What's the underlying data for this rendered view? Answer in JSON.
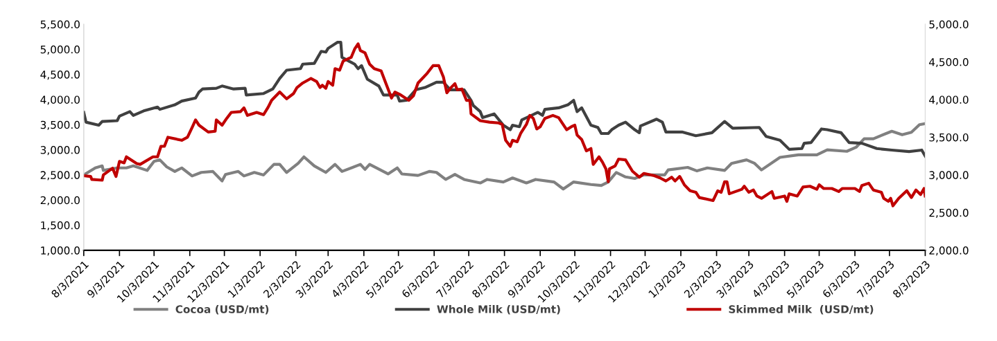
{
  "chart_data": {
    "type": "line",
    "xlim": [
      "2021-08-03",
      "2023-08-03"
    ],
    "xticks": [
      {
        "value": "2021-08-03",
        "label": "8/3/2021"
      },
      {
        "value": "2021-09-03",
        "label": "9/3/2021"
      },
      {
        "value": "2021-10-03",
        "label": "10/3/2021"
      },
      {
        "value": "2021-11-03",
        "label": "11/3/2021"
      },
      {
        "value": "2021-12-03",
        "label": "12/3/2021"
      },
      {
        "value": "2022-01-03",
        "label": "1/3/2022"
      },
      {
        "value": "2022-02-03",
        "label": "2/3/2022"
      },
      {
        "value": "2022-03-03",
        "label": "3/3/2022"
      },
      {
        "value": "2022-04-03",
        "label": "4/3/2022"
      },
      {
        "value": "2022-05-03",
        "label": "5/3/2022"
      },
      {
        "value": "2022-06-03",
        "label": "6/3/2022"
      },
      {
        "value": "2022-07-03",
        "label": "7/3/2022"
      },
      {
        "value": "2022-08-03",
        "label": "8/3/2022"
      },
      {
        "value": "2022-09-03",
        "label": "9/3/2022"
      },
      {
        "value": "2022-10-03",
        "label": "10/3/2022"
      },
      {
        "value": "2022-11-03",
        "label": "11/3/2022"
      },
      {
        "value": "2022-12-03",
        "label": "12/3/2022"
      },
      {
        "value": "2023-01-03",
        "label": "1/3/2023"
      },
      {
        "value": "2023-02-03",
        "label": "2/3/2023"
      },
      {
        "value": "2023-03-03",
        "label": "3/3/2023"
      },
      {
        "value": "2023-04-03",
        "label": "4/3/2023"
      },
      {
        "value": "2023-05-03",
        "label": "5/3/2023"
      },
      {
        "value": "2023-06-03",
        "label": "6/3/2023"
      },
      {
        "value": "2023-07-03",
        "label": "7/3/2023"
      },
      {
        "value": "2023-08-03",
        "label": "8/3/2023"
      }
    ],
    "ylim": [
      1000,
      5500
    ],
    "yticks": [
      {
        "value": 1000,
        "label": "1,000.0"
      },
      {
        "value": 1500,
        "label": "1,500.0"
      },
      {
        "value": 2000,
        "label": "2,000.0"
      },
      {
        "value": 2500,
        "label": "2,500.0"
      },
      {
        "value": 3000,
        "label": "3,000.0"
      },
      {
        "value": 3500,
        "label": "3,500.0"
      },
      {
        "value": 4000,
        "label": "4,000.0"
      },
      {
        "value": 4500,
        "label": "4,500.0"
      },
      {
        "value": 5000,
        "label": "5,000.0"
      },
      {
        "value": 5500,
        "label": "5,500.0"
      }
    ],
    "y2lim": [
      2000,
      5000
    ],
    "y2ticks": [
      {
        "value": 2000,
        "label": "2,000.0"
      },
      {
        "value": 2500,
        "label": "2,500.0"
      },
      {
        "value": 3000,
        "label": "3,000.0"
      },
      {
        "value": 3500,
        "label": "3,500.0"
      },
      {
        "value": 4000,
        "label": "4,000.0"
      },
      {
        "value": 4500,
        "label": "4,500.0"
      },
      {
        "value": 5000,
        "label": "5,000.0"
      }
    ],
    "grid": false,
    "legend": "bottom",
    "marker": "none",
    "line_style": "solid",
    "series": [
      {
        "name": "Cocoa (USD/mt)",
        "color": "#808080",
        "x": [
          "2021-08-03",
          "2021-08-13",
          "2021-08-19",
          "2021-08-20",
          "2021-09-01",
          "2021-09-09",
          "2021-09-15",
          "2021-09-27",
          "2021-10-03",
          "2021-10-08",
          "2021-10-14",
          "2021-10-21",
          "2021-10-27",
          "2021-11-05",
          "2021-11-13",
          "2021-11-23",
          "2021-12-01",
          "2021-12-04",
          "2021-12-15",
          "2021-12-20",
          "2021-12-29",
          "2022-01-06",
          "2022-01-15",
          "2022-01-20",
          "2022-01-26",
          "2022-02-05",
          "2022-02-10",
          "2022-02-19",
          "2022-03-01",
          "2022-03-09",
          "2022-03-15",
          "2022-03-31",
          "2022-04-04",
          "2022-04-08",
          "2022-04-24",
          "2022-05-02",
          "2022-05-06",
          "2022-05-20",
          "2022-05-30",
          "2022-06-05",
          "2022-06-13",
          "2022-06-21",
          "2022-06-29",
          "2022-07-13",
          "2022-07-19",
          "2022-08-02",
          "2022-08-10",
          "2022-08-22",
          "2022-08-30",
          "2022-09-15",
          "2022-09-23",
          "2022-10-02",
          "2022-10-17",
          "2022-10-26",
          "2022-11-01",
          "2022-11-08",
          "2022-11-16",
          "2022-11-24",
          "2022-12-02",
          "2022-12-20",
          "2022-12-23",
          "2023-01-09",
          "2023-01-17",
          "2023-01-26",
          "2023-02-10",
          "2023-02-16",
          "2023-03-01",
          "2023-03-08",
          "2023-03-14",
          "2023-03-30",
          "2023-04-15",
          "2023-05-01",
          "2023-05-10",
          "2023-05-27",
          "2023-06-04",
          "2023-06-11",
          "2023-06-19",
          "2023-07-05",
          "2023-07-14",
          "2023-07-22",
          "2023-07-29",
          "2023-08-03"
        ],
        "values": [
          2500,
          2640,
          2680,
          2590,
          2640,
          2640,
          2680,
          2590,
          2770,
          2800,
          2660,
          2570,
          2640,
          2480,
          2550,
          2570,
          2380,
          2510,
          2570,
          2480,
          2550,
          2500,
          2710,
          2710,
          2550,
          2730,
          2860,
          2680,
          2550,
          2710,
          2570,
          2710,
          2610,
          2710,
          2520,
          2640,
          2520,
          2490,
          2570,
          2550,
          2410,
          2510,
          2410,
          2340,
          2410,
          2360,
          2440,
          2340,
          2410,
          2360,
          2220,
          2360,
          2310,
          2290,
          2360,
          2550,
          2460,
          2430,
          2500,
          2500,
          2600,
          2650,
          2580,
          2640,
          2590,
          2730,
          2800,
          2730,
          2600,
          2850,
          2900,
          2900,
          3000,
          2970,
          3050,
          3220,
          3220,
          3370,
          3300,
          3350,
          3500,
          3520
        ]
      },
      {
        "name": "Whole Milk (USD/mt)",
        "color": "#404040",
        "axis": "y2",
        "x": [
          "2021-08-03",
          "2021-08-05",
          "2021-08-16",
          "2021-08-19",
          "2021-09-01",
          "2021-09-03",
          "2021-09-12",
          "2021-09-15",
          "2021-09-24",
          "2021-10-06",
          "2021-10-08",
          "2021-10-21",
          "2021-10-27",
          "2021-11-08",
          "2021-11-11",
          "2021-11-14",
          "2021-11-26",
          "2021-12-01",
          "2021-12-11",
          "2021-12-21",
          "2021-12-22",
          "2022-01-06",
          "2022-01-14",
          "2022-01-20",
          "2022-01-26",
          "2022-02-07",
          "2022-02-09",
          "2022-02-19",
          "2022-02-25",
          "2022-03-01",
          "2022-03-03",
          "2022-03-11",
          "2022-03-14",
          "2022-03-15",
          "2022-03-21",
          "2022-03-26",
          "2022-03-29",
          "2022-04-01",
          "2022-04-06",
          "2022-04-16",
          "2022-04-20",
          "2022-05-02",
          "2022-05-04",
          "2022-05-10",
          "2022-05-18",
          "2022-05-26",
          "2022-06-05",
          "2022-06-11",
          "2022-06-17",
          "2022-06-29",
          "2022-07-05",
          "2022-07-07",
          "2022-07-13",
          "2022-07-15",
          "2022-07-25",
          "2022-08-02",
          "2022-08-08",
          "2022-08-10",
          "2022-08-16",
          "2022-08-18",
          "2022-09-01",
          "2022-09-05",
          "2022-09-07",
          "2022-09-19",
          "2022-09-27",
          "2022-10-02",
          "2022-10-05",
          "2022-10-09",
          "2022-10-17",
          "2022-10-23",
          "2022-10-26",
          "2022-11-01",
          "2022-11-04",
          "2022-11-10",
          "2022-11-16",
          "2022-11-24",
          "2022-11-28",
          "2022-11-29",
          "2022-12-13",
          "2022-12-18",
          "2022-12-21",
          "2023-01-04",
          "2023-01-16",
          "2023-01-30",
          "2023-02-10",
          "2023-02-17",
          "2023-03-12",
          "2023-03-18",
          "2023-03-30",
          "2023-04-07",
          "2023-04-18",
          "2023-04-20",
          "2023-04-26",
          "2023-05-05",
          "2023-05-10",
          "2023-05-22",
          "2023-05-29",
          "2023-06-09",
          "2023-06-22",
          "2023-07-05",
          "2023-07-20",
          "2023-07-31",
          "2023-08-03"
        ],
        "values": [
          3830,
          3700,
          3660,
          3710,
          3720,
          3780,
          3840,
          3790,
          3850,
          3900,
          3870,
          3930,
          3980,
          4020,
          4100,
          4140,
          4150,
          4180,
          4140,
          4150,
          4060,
          4080,
          4140,
          4280,
          4390,
          4410,
          4470,
          4480,
          4640,
          4630,
          4680,
          4760,
          4760,
          4560,
          4510,
          4470,
          4410,
          4450,
          4270,
          4180,
          4060,
          4060,
          3980,
          3990,
          4130,
          4160,
          4230,
          4230,
          4130,
          4130,
          3990,
          3920,
          3840,
          3760,
          3810,
          3660,
          3600,
          3660,
          3640,
          3730,
          3830,
          3790,
          3870,
          3890,
          3930,
          3990,
          3840,
          3890,
          3660,
          3630,
          3550,
          3550,
          3600,
          3660,
          3700,
          3600,
          3560,
          3650,
          3740,
          3700,
          3570,
          3570,
          3520,
          3560,
          3710,
          3620,
          3630,
          3510,
          3460,
          3340,
          3350,
          3420,
          3430,
          3610,
          3600,
          3560,
          3430,
          3420,
          3350,
          3330,
          3310,
          3330,
          3250
        ]
      },
      {
        "name": "Skimmed Milk  (USD/mt)",
        "color": "#c00000",
        "axis": "y2",
        "x": [
          "2021-08-03",
          "2021-08-09",
          "2021-08-10",
          "2021-08-19",
          "2021-08-20",
          "2021-08-28",
          "2021-08-31",
          "2021-09-03",
          "2021-09-07",
          "2021-09-09",
          "2021-09-18",
          "2021-09-21",
          "2021-10-02",
          "2021-10-06",
          "2021-10-09",
          "2021-10-12",
          "2021-10-15",
          "2021-10-24",
          "2021-10-27",
          "2021-11-01",
          "2021-11-05",
          "2021-11-08",
          "2021-11-11",
          "2021-11-19",
          "2021-11-25",
          "2021-11-26",
          "2021-12-01",
          "2021-12-05",
          "2021-12-09",
          "2021-12-17",
          "2021-12-20",
          "2021-12-23",
          "2021-12-31",
          "2022-01-06",
          "2022-01-10",
          "2022-01-13",
          "2022-01-20",
          "2022-01-26",
          "2022-02-01",
          "2022-02-04",
          "2022-02-09",
          "2022-02-16",
          "2022-02-21",
          "2022-02-24",
          "2022-02-26",
          "2022-03-01",
          "2022-03-03",
          "2022-03-07",
          "2022-03-09",
          "2022-03-13",
          "2022-03-16",
          "2022-03-23",
          "2022-03-26",
          "2022-03-29",
          "2022-03-31",
          "2022-04-04",
          "2022-04-08",
          "2022-04-12",
          "2022-04-18",
          "2022-04-22",
          "2022-04-27",
          "2022-04-30",
          "2022-05-04",
          "2022-05-12",
          "2022-05-16",
          "2022-05-20",
          "2022-05-28",
          "2022-06-02",
          "2022-06-07",
          "2022-06-11",
          "2022-06-14",
          "2022-06-17",
          "2022-06-21",
          "2022-06-23",
          "2022-06-27",
          "2022-07-01",
          "2022-07-04",
          "2022-07-05",
          "2022-07-13",
          "2022-07-21",
          "2022-07-29",
          "2022-08-01",
          "2022-08-04",
          "2022-08-08",
          "2022-08-10",
          "2022-08-14",
          "2022-08-17",
          "2022-08-22",
          "2022-08-25",
          "2022-08-28",
          "2022-08-31",
          "2022-09-03",
          "2022-09-07",
          "2022-09-14",
          "2022-09-19",
          "2022-09-26",
          "2022-09-30",
          "2022-10-03",
          "2022-10-05",
          "2022-10-09",
          "2022-10-13",
          "2022-10-17",
          "2022-10-19",
          "2022-10-24",
          "2022-10-27",
          "2022-10-30",
          "2022-11-01",
          "2022-11-02",
          "2022-11-07",
          "2022-11-10",
          "2022-11-16",
          "2022-11-22",
          "2022-11-28",
          "2022-12-02",
          "2022-12-11",
          "2022-12-16",
          "2022-12-21",
          "2022-12-26",
          "2022-12-29",
          "2023-01-02",
          "2023-01-06",
          "2023-01-11",
          "2023-01-16",
          "2023-01-19",
          "2023-01-31",
          "2023-02-04",
          "2023-02-07",
          "2023-02-10",
          "2023-02-12",
          "2023-02-14",
          "2023-02-25",
          "2023-02-27",
          "2023-03-03",
          "2023-03-07",
          "2023-03-10",
          "2023-03-14",
          "2023-03-23",
          "2023-03-25",
          "2023-04-03",
          "2023-04-05",
          "2023-04-07",
          "2023-04-14",
          "2023-04-19",
          "2023-04-25",
          "2023-05-01",
          "2023-05-03",
          "2023-05-07",
          "2023-05-14",
          "2023-05-20",
          "2023-05-23",
          "2023-06-03",
          "2023-06-07",
          "2023-06-09",
          "2023-06-15",
          "2023-06-19",
          "2023-06-26",
          "2023-06-28",
          "2023-07-02",
          "2023-07-04",
          "2023-07-06",
          "2023-07-11",
          "2023-07-18",
          "2023-07-22",
          "2023-07-26",
          "2023-07-30",
          "2023-08-02",
          "2023-08-03"
        ],
        "values": [
          2990,
          2980,
          2940,
          2930,
          3000,
          3090,
          2980,
          3180,
          3160,
          3240,
          3150,
          3140,
          3240,
          3240,
          3380,
          3380,
          3500,
          3470,
          3460,
          3500,
          3630,
          3730,
          3660,
          3570,
          3580,
          3730,
          3660,
          3750,
          3830,
          3840,
          3890,
          3790,
          3830,
          3800,
          3900,
          3990,
          4100,
          4010,
          4080,
          4160,
          4220,
          4280,
          4240,
          4160,
          4190,
          4150,
          4240,
          4190,
          4410,
          4390,
          4510,
          4560,
          4670,
          4740,
          4650,
          4620,
          4470,
          4410,
          4380,
          4220,
          4020,
          4100,
          4070,
          3990,
          4050,
          4220,
          4350,
          4450,
          4450,
          4300,
          4090,
          4150,
          4210,
          4130,
          4140,
          3990,
          3990,
          3810,
          3720,
          3700,
          3690,
          3670,
          3460,
          3380,
          3460,
          3440,
          3550,
          3670,
          3790,
          3750,
          3610,
          3640,
          3750,
          3790,
          3760,
          3600,
          3640,
          3660,
          3530,
          3470,
          3320,
          3350,
          3140,
          3240,
          3170,
          3080,
          2910,
          3080,
          3120,
          3210,
          3200,
          3050,
          2970,
          3020,
          2990,
          2960,
          2920,
          2970,
          2920,
          2980,
          2870,
          2790,
          2770,
          2700,
          2660,
          2790,
          2770,
          2910,
          2910,
          2750,
          2810,
          2850,
          2770,
          2800,
          2720,
          2690,
          2780,
          2690,
          2720,
          2650,
          2750,
          2720,
          2840,
          2850,
          2810,
          2870,
          2820,
          2820,
          2780,
          2820,
          2820,
          2780,
          2860,
          2890,
          2800,
          2770,
          2690,
          2650,
          2690,
          2590,
          2690,
          2790,
          2700,
          2800,
          2740,
          2820,
          2720
        ]
      }
    ]
  }
}
